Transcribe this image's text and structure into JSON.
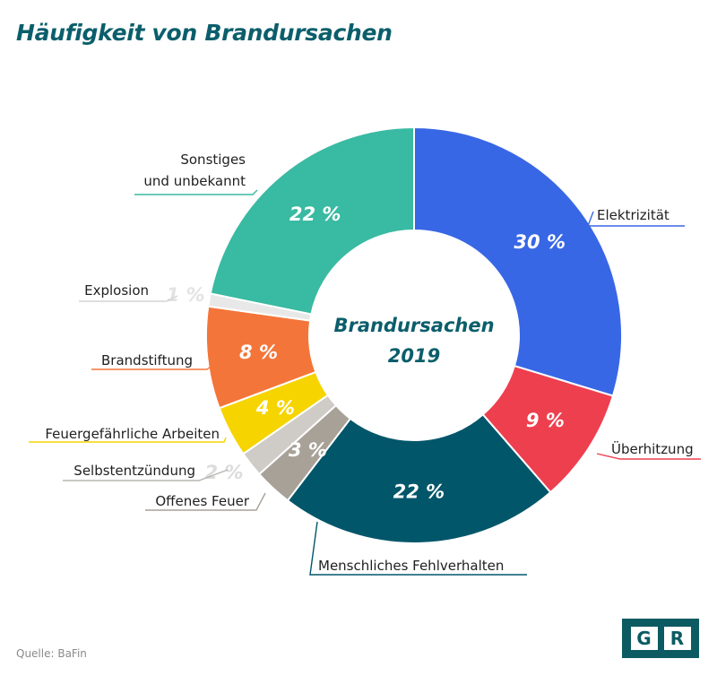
{
  "title": "Häufigkeit von Brandursachen",
  "source": "Quelle: BaFin",
  "logo": {
    "letters": [
      "G",
      "R"
    ]
  },
  "chart_data": {
    "type": "pie",
    "donut": true,
    "title": "Häufigkeit von Brandursachen",
    "center_label": [
      "Brandursachen",
      "2019"
    ],
    "slices": [
      {
        "label": "Elektrizität",
        "value": 30,
        "value_label": "30 %",
        "color": "#3867e6"
      },
      {
        "label": "Überhitzung",
        "value": 9,
        "value_label": "9 %",
        "color": "#ee3f4f"
      },
      {
        "label": "Menschliches Fehlverhalten",
        "value": 22,
        "value_label": "22 %",
        "color": "#02566a"
      },
      {
        "label": "Offenes Feuer",
        "value": 3,
        "value_label": "3 %",
        "color": "#a8a198"
      },
      {
        "label": "Selbstentzündung",
        "value": 2,
        "value_label": "2 %",
        "color": "#cfcbc7"
      },
      {
        "label": "Feuergefährliche Arbeiten",
        "value": 4,
        "value_label": "4 %",
        "color": "#f6d400"
      },
      {
        "label": "Brandstiftung",
        "value": 8,
        "value_label": "8 %",
        "color": "#f47539"
      },
      {
        "label": "Explosion",
        "value": 1,
        "value_label": "1 %",
        "color": "#e8e8e8"
      },
      {
        "label": "Sonstiges und unbekannt",
        "value": 22,
        "value_label": "22 %",
        "color": "#39baa2"
      }
    ]
  }
}
